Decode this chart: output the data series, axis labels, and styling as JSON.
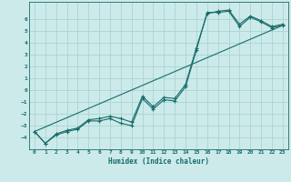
{
  "xlabel": "Humidex (Indice chaleur)",
  "bg_color": "#cceaea",
  "line_color": "#1a6b6b",
  "grid_color": "#aad4d4",
  "xlim": [
    -0.5,
    23.5
  ],
  "ylim": [
    -5.0,
    7.5
  ],
  "xticks": [
    0,
    1,
    2,
    3,
    4,
    5,
    6,
    7,
    8,
    9,
    10,
    11,
    12,
    13,
    14,
    15,
    16,
    17,
    18,
    19,
    20,
    21,
    22,
    23
  ],
  "yticks": [
    -4,
    -3,
    -2,
    -1,
    0,
    1,
    2,
    3,
    4,
    5,
    6
  ],
  "line1_x": [
    0,
    1,
    2,
    3,
    4,
    5,
    6,
    7,
    8,
    9,
    10,
    11,
    12,
    13,
    14,
    15,
    16,
    17,
    18,
    19,
    20,
    21,
    22,
    23
  ],
  "line1_y": [
    -3.5,
    -4.5,
    -3.8,
    -3.5,
    -3.3,
    -2.6,
    -2.6,
    -2.4,
    -2.8,
    -3.0,
    -0.7,
    -1.6,
    -0.8,
    -0.9,
    0.3,
    3.4,
    6.6,
    6.6,
    6.7,
    5.4,
    6.2,
    5.8,
    5.3,
    5.5
  ],
  "line2_x": [
    0,
    1,
    2,
    3,
    4,
    5,
    6,
    7,
    8,
    9,
    10,
    11,
    12,
    13,
    14,
    15,
    16,
    17,
    18,
    19,
    20,
    21,
    22,
    23
  ],
  "line2_y": [
    -3.5,
    -4.5,
    -3.7,
    -3.4,
    -3.2,
    -2.5,
    -2.4,
    -2.2,
    -2.4,
    -2.7,
    -0.5,
    -1.4,
    -0.6,
    -0.7,
    0.5,
    3.6,
    6.5,
    6.7,
    6.8,
    5.6,
    6.3,
    5.9,
    5.4,
    5.6
  ],
  "line3_x": [
    0,
    23
  ],
  "line3_y": [
    -3.5,
    5.5
  ]
}
